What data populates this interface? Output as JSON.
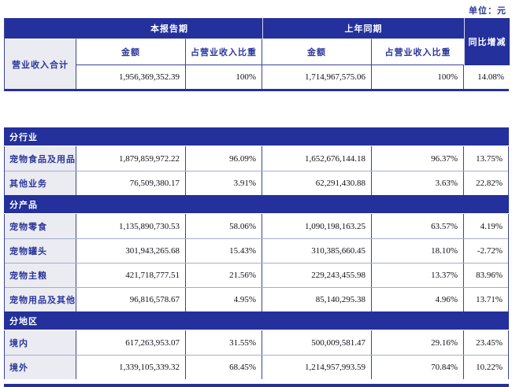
{
  "unit_label": "单位：元",
  "colors": {
    "header_blue": "#24309c",
    "label_text_blue": "#2b379b",
    "label_cell_gray": "#ebebf2",
    "row_divider": "#a6adcf",
    "number_text": "#101018"
  },
  "header": {
    "current_period": "本报告期",
    "prior_period": "上年同期",
    "yoy": "同比增减",
    "amount": "金额",
    "share": "占营业收入比重"
  },
  "total": {
    "label": "营业收入合计",
    "values": [
      "1,956,369,352.39",
      "100%",
      "1,714,967,575.06",
      "100%",
      "14.08%"
    ]
  },
  "sections": [
    {
      "title": "分行业",
      "rows": [
        {
          "label": "宠物食品及用品",
          "values": [
            "1,879,859,972.22",
            "96.09%",
            "1,652,676,144.18",
            "96.37%",
            "13.75%"
          ]
        },
        {
          "label": "其他业务",
          "values": [
            "76,509,380.17",
            "3.91%",
            "62,291,430.88",
            "3.63%",
            "22.82%"
          ]
        }
      ]
    },
    {
      "title": "分产品",
      "rows": [
        {
          "label": "宠物零食",
          "values": [
            "1,135,890,730.53",
            "58.06%",
            "1,090,198,163.25",
            "63.57%",
            "4.19%"
          ]
        },
        {
          "label": "宠物罐头",
          "values": [
            "301,943,265.68",
            "15.43%",
            "310,385,660.45",
            "18.10%",
            "-2.72%"
          ]
        },
        {
          "label": "宠物主粮",
          "values": [
            "421,718,777.51",
            "21.56%",
            "229,243,455.98",
            "13.37%",
            "83.96%"
          ]
        },
        {
          "label": "宠物用品及其他",
          "values": [
            "96,816,578.67",
            "4.95%",
            "85,140,295.38",
            "4.96%",
            "13.71%"
          ]
        }
      ]
    },
    {
      "title": "分地区",
      "rows": [
        {
          "label": "境内",
          "values": [
            "617,263,953.07",
            "31.55%",
            "500,009,581.47",
            "29.16%",
            "23.45%"
          ]
        },
        {
          "label": "境外",
          "values": [
            "1,339,105,339.32",
            "68.45%",
            "1,214,957,993.59",
            "70.84%",
            "10.22%"
          ]
        }
      ]
    }
  ]
}
